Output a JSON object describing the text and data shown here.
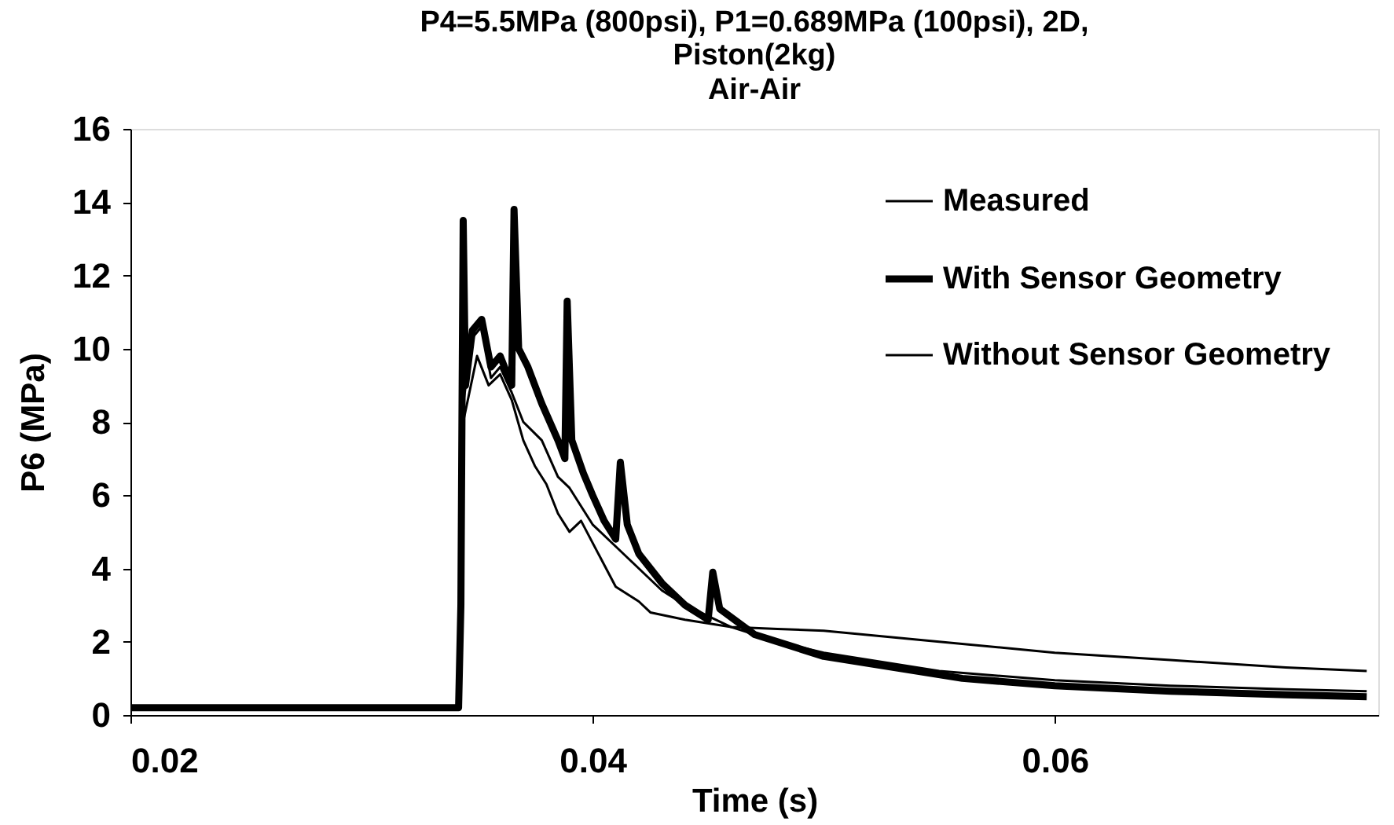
{
  "chart_data": {
    "type": "line",
    "title": "P4=5.5MPa (800psi), P1=0.689MPa (100psi), 2D, Piston(2kg)",
    "subtitle": "Air-Air",
    "xlabel": "Time (s)",
    "ylabel": "P6 (MPa)",
    "xlim": [
      0.02,
      0.074
    ],
    "xticks": [
      0.02,
      0.04,
      0.06
    ],
    "ylim": [
      0,
      16
    ],
    "yticks": [
      0,
      2,
      4,
      6,
      8,
      10,
      12,
      14,
      16
    ],
    "grid": false,
    "legend": "top right",
    "marker": "none",
    "line_style": "solid",
    "series": [
      {
        "name": "Measured",
        "color": "#000000",
        "x": [
          0.02,
          0.0342,
          0.0344,
          0.0348,
          0.0352,
          0.0356,
          0.036,
          0.0365,
          0.037,
          0.0378,
          0.0385,
          0.039,
          0.0395,
          0.04,
          0.041,
          0.042,
          0.043,
          0.044,
          0.046,
          0.048,
          0.05,
          0.055,
          0.06,
          0.065,
          0.07,
          0.0735
        ],
        "values": [
          0.2,
          0.2,
          8.5,
          10.3,
          10.6,
          9.2,
          9.5,
          8.8,
          8.0,
          7.5,
          6.5,
          6.2,
          5.7,
          5.2,
          4.6,
          4.0,
          3.4,
          3.0,
          2.4,
          2.0,
          1.7,
          1.2,
          0.95,
          0.8,
          0.7,
          0.65
        ]
      },
      {
        "name": "With Sensor Geometry",
        "color": "#000000",
        "x": [
          0.02,
          0.025,
          0.03,
          0.0342,
          0.0343,
          0.03435,
          0.0344,
          0.0345,
          0.0348,
          0.0352,
          0.0356,
          0.036,
          0.0365,
          0.0366,
          0.0368,
          0.0372,
          0.0378,
          0.0385,
          0.0388,
          0.0389,
          0.0391,
          0.0396,
          0.04,
          0.0405,
          0.041,
          0.0412,
          0.0415,
          0.042,
          0.043,
          0.044,
          0.045,
          0.0452,
          0.0455,
          0.047,
          0.05,
          0.053,
          0.056,
          0.06,
          0.065,
          0.07,
          0.0735
        ],
        "values": [
          0.2,
          0.2,
          0.2,
          0.2,
          3.0,
          8.5,
          13.5,
          9.0,
          10.5,
          10.8,
          9.5,
          9.8,
          9.0,
          13.8,
          10.0,
          9.5,
          8.5,
          7.5,
          7.0,
          11.3,
          7.5,
          6.6,
          6.0,
          5.3,
          4.8,
          6.9,
          5.2,
          4.4,
          3.6,
          3.0,
          2.6,
          3.9,
          2.9,
          2.2,
          1.6,
          1.3,
          1.0,
          0.8,
          0.65,
          0.55,
          0.5
        ]
      },
      {
        "name": "Without Sensor Geometry",
        "color": "#000000",
        "x": [
          0.02,
          0.0342,
          0.0344,
          0.035,
          0.0355,
          0.036,
          0.0365,
          0.037,
          0.0375,
          0.038,
          0.0385,
          0.039,
          0.0395,
          0.04,
          0.041,
          0.042,
          0.0425,
          0.044,
          0.046,
          0.048,
          0.05,
          0.055,
          0.06,
          0.065,
          0.07,
          0.0735
        ],
        "values": [
          0.2,
          0.2,
          8.0,
          9.8,
          9.0,
          9.3,
          8.6,
          7.5,
          6.8,
          6.3,
          5.5,
          5.0,
          5.3,
          4.7,
          3.5,
          3.1,
          2.8,
          2.6,
          2.4,
          2.35,
          2.3,
          2.0,
          1.7,
          1.5,
          1.3,
          1.2
        ]
      }
    ]
  }
}
